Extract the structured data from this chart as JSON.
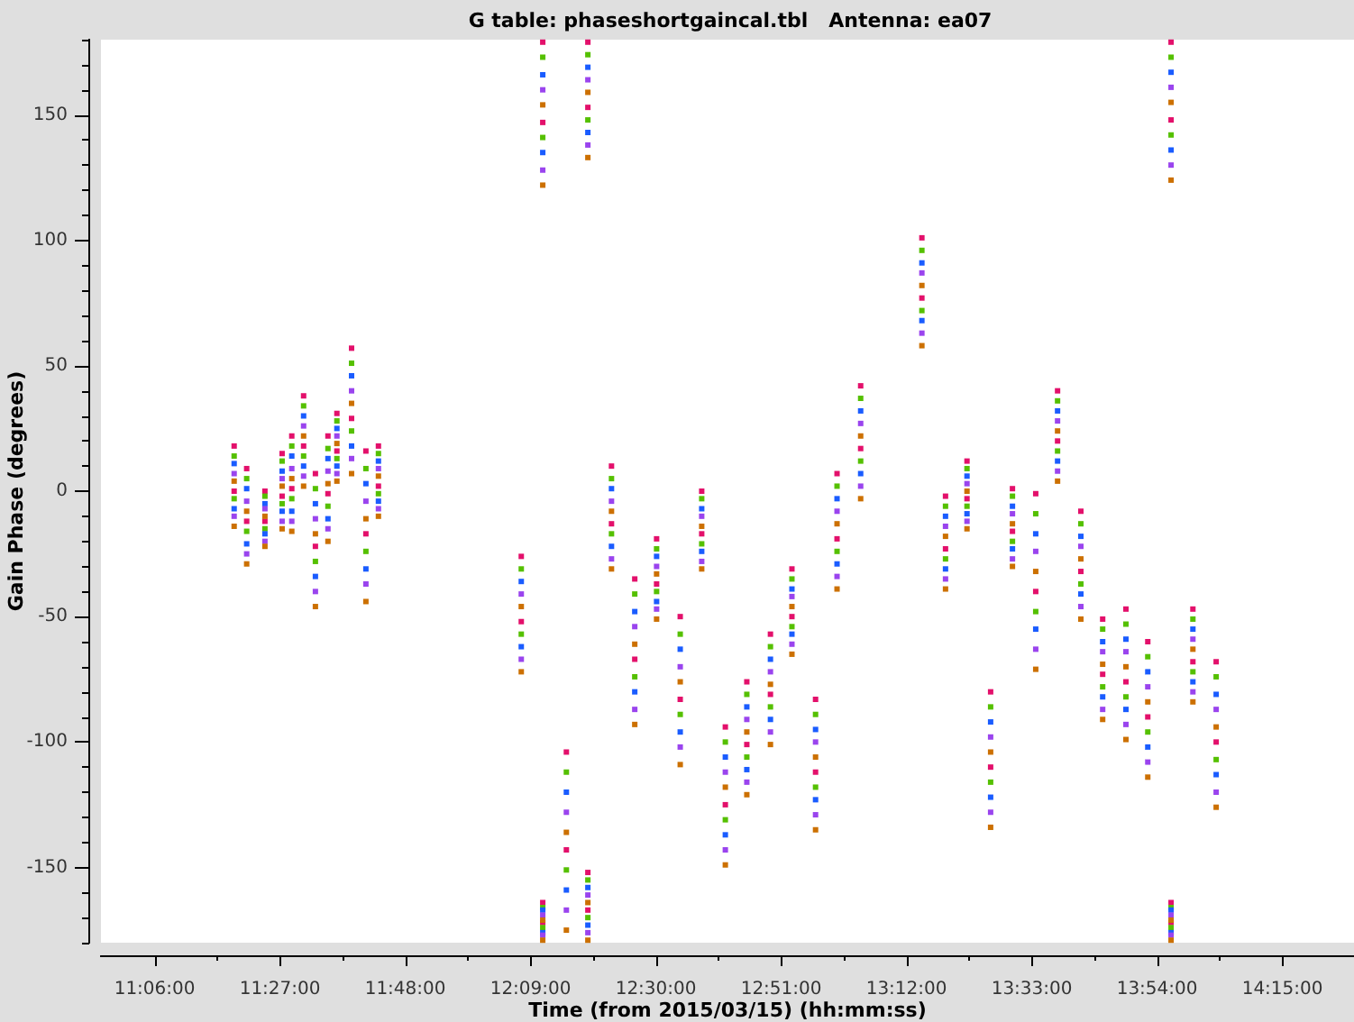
{
  "chart_data": {
    "type": "scatter",
    "title": "G table: phaseshortgaincal.tbl   Antenna: ea07",
    "xlabel": "Time (from 2015/03/15) (hh:mm:ss)",
    "ylabel": "Gain Phase (degrees)",
    "x": [
      11.322,
      11.322,
      11.357,
      11.357,
      11.408,
      11.408,
      11.456,
      11.456,
      11.483,
      11.483,
      11.516,
      11.516,
      11.549,
      11.549,
      11.584,
      11.584,
      11.609,
      11.609,
      11.65,
      11.65,
      11.69,
      11.69,
      11.725,
      11.725,
      12.124,
      12.124,
      12.184,
      12.184,
      12.184,
      12.184,
      12.25,
      12.25,
      12.31,
      12.31,
      12.31,
      12.31,
      12.376,
      12.376,
      12.441,
      12.441,
      12.502,
      12.502,
      12.568,
      12.568,
      12.628,
      12.628,
      12.694,
      12.694,
      12.754,
      12.754,
      12.82,
      12.82,
      12.88,
      12.88,
      12.946,
      12.946,
      13.006,
      13.006,
      13.072,
      13.072,
      13.243,
      13.243,
      13.309,
      13.309,
      13.369,
      13.369,
      13.435,
      13.435,
      13.496,
      13.496,
      13.561,
      13.561,
      13.622,
      13.622,
      13.687,
      13.687,
      13.748,
      13.748,
      13.813,
      13.813,
      13.874,
      13.874,
      13.939,
      13.939,
      13.939,
      13.939,
      14,
      14,
      14.065,
      14.065
    ],
    "series": [
      {
        "color": "#e3106b",
        "values": [
          18,
          0,
          9,
          -12,
          0,
          -12,
          15,
          -2,
          22,
          1,
          38,
          18,
          7,
          -22,
          22,
          -1,
          31,
          16,
          57,
          29,
          16,
          -17,
          18,
          2,
          -26,
          -52,
          179,
          147,
          -164,
          -172,
          -104,
          -143,
          179,
          153,
          -152,
          -167,
          10,
          -13,
          -35,
          -67,
          -19,
          -37,
          -50,
          -83,
          0,
          -17,
          -94,
          -125,
          -76,
          -101,
          -57,
          -81,
          -31,
          -50,
          -83,
          -112,
          7,
          -19,
          42,
          17,
          101,
          77,
          -2,
          -23,
          12,
          -3,
          -80,
          -110,
          1,
          -16,
          -1,
          -40,
          40,
          20,
          -8,
          -32,
          -51,
          -73,
          -47,
          -76,
          -60,
          -90,
          179,
          148,
          -164,
          -172,
          -47,
          -68,
          -68,
          -100
        ]
      },
      {
        "color": "#55c000",
        "values": [
          14,
          -3,
          5,
          -16,
          -2,
          -15,
          12,
          -5,
          18,
          -3,
          34,
          14,
          1,
          -28,
          17,
          -6,
          28,
          13,
          51,
          24,
          9,
          -24,
          15,
          -1,
          -31,
          -57,
          173,
          141,
          -166,
          -174,
          -112,
          -151,
          174,
          148,
          -155,
          -170,
          5,
          -17,
          -41,
          -74,
          -23,
          -40,
          -57,
          -89,
          -3,
          -21,
          -100,
          -131,
          -81,
          -106,
          -62,
          -86,
          -35,
          -54,
          -89,
          -118,
          2,
          -24,
          37,
          12,
          96,
          72,
          -6,
          -27,
          9,
          -6,
          -86,
          -116,
          -2,
          -20,
          -9,
          -48,
          36,
          16,
          -13,
          -37,
          -55,
          -78,
          -53,
          -82,
          -66,
          -96,
          173,
          142,
          -166,
          -174,
          -51,
          -72,
          -74,
          -107
        ]
      },
      {
        "color": "#1a5cff",
        "values": [
          11,
          -7,
          1,
          -21,
          -5,
          -17,
          8,
          -8,
          14,
          -8,
          30,
          10,
          -5,
          -34,
          13,
          -11,
          25,
          10,
          46,
          18,
          3,
          -31,
          12,
          -4,
          -36,
          -62,
          166,
          135,
          -167,
          -176,
          -120,
          -159,
          169,
          143,
          -158,
          -173,
          1,
          -22,
          -48,
          -80,
          -26,
          -44,
          -63,
          -96,
          -7,
          -24,
          -106,
          -137,
          -86,
          -111,
          -67,
          -91,
          -39,
          -57,
          -95,
          -123,
          -3,
          -29,
          32,
          7,
          91,
          68,
          -10,
          -31,
          6,
          -9,
          -92,
          -122,
          -6,
          -23,
          -17,
          -55,
          32,
          12,
          -18,
          -41,
          -60,
          -82,
          -59,
          -87,
          -72,
          -102,
          167,
          136,
          -167,
          -176,
          -55,
          -76,
          -81,
          -113
        ]
      },
      {
        "color": "#9a44ee",
        "values": [
          7,
          -10,
          -4,
          -25,
          -7,
          -20,
          5,
          -12,
          9,
          -12,
          26,
          6,
          -11,
          -40,
          8,
          -15,
          22,
          7,
          40,
          13,
          -4,
          -37,
          9,
          -7,
          -41,
          -67,
          160,
          128,
          -169,
          -177,
          -128,
          -167,
          164,
          138,
          -161,
          -176,
          -4,
          -27,
          -54,
          -87,
          -30,
          -47,
          -70,
          -102,
          -10,
          -28,
          -112,
          -143,
          -91,
          -116,
          -72,
          -96,
          -42,
          -61,
          -100,
          -129,
          -8,
          -34,
          27,
          2,
          87,
          63,
          -14,
          -35,
          3,
          -12,
          -98,
          -128,
          -9,
          -27,
          -24,
          -63,
          28,
          8,
          -22,
          -46,
          -64,
          -87,
          -64,
          -93,
          -78,
          -108,
          161,
          130,
          -169,
          -177,
          -59,
          -80,
          -87,
          -120
        ]
      },
      {
        "color": "#cc7000",
        "values": [
          4,
          -14,
          -8,
          -29,
          -10,
          -22,
          2,
          -15,
          5,
          -16,
          22,
          2,
          -17,
          -46,
          3,
          -20,
          19,
          4,
          35,
          7,
          -11,
          -44,
          6,
          -10,
          -46,
          -72,
          154,
          122,
          -171,
          -179,
          -136,
          -175,
          159,
          133,
          -164,
          -179,
          -8,
          -31,
          -61,
          -93,
          -33,
          -51,
          -76,
          -109,
          -14,
          -31,
          -118,
          -149,
          -96,
          -121,
          -77,
          -101,
          -46,
          -65,
          -106,
          -135,
          -13,
          -39,
          22,
          -3,
          82,
          58,
          -18,
          -39,
          0,
          -15,
          -104,
          -134,
          -13,
          -30,
          -32,
          -71,
          24,
          4,
          -27,
          -51,
          -69,
          -91,
          -70,
          -99,
          -84,
          -114,
          155,
          124,
          -171,
          -179,
          -63,
          -84,
          -94,
          -126
        ]
      }
    ],
    "xlim": [
      10.95,
      14.45
    ],
    "xticks": [
      {
        "value": 11.1,
        "label": "11:06:00"
      },
      {
        "value": 11.275,
        "label": null
      },
      {
        "value": 11.45,
        "label": "11:27:00"
      },
      {
        "value": 11.625,
        "label": null
      },
      {
        "value": 11.8,
        "label": "11:48:00"
      },
      {
        "value": 11.975,
        "label": null
      },
      {
        "value": 12.15,
        "label": "12:09:00"
      },
      {
        "value": 12.325,
        "label": null
      },
      {
        "value": 12.5,
        "label": "12:30:00"
      },
      {
        "value": 12.675,
        "label": null
      },
      {
        "value": 12.85,
        "label": "12:51:00"
      },
      {
        "value": 13.025,
        "label": null
      },
      {
        "value": 13.2,
        "label": "13:12:00"
      },
      {
        "value": 13.375,
        "label": null
      },
      {
        "value": 13.55,
        "label": "13:33:00"
      },
      {
        "value": 13.725,
        "label": null
      },
      {
        "value": 13.9,
        "label": "13:54:00"
      },
      {
        "value": 14.075,
        "label": null
      },
      {
        "value": 14.25,
        "label": "14:15:00"
      }
    ],
    "ylim": [
      -180,
      180
    ],
    "yticks": [
      {
        "value": -180,
        "label": null
      },
      {
        "value": -170,
        "label": null
      },
      {
        "value": -160,
        "label": null
      },
      -150,
      {
        "value": -140,
        "label": null
      },
      {
        "value": -130,
        "label": null
      },
      {
        "value": -120,
        "label": null
      },
      {
        "value": -110,
        "label": null
      },
      -100,
      {
        "value": -90,
        "label": null
      },
      {
        "value": -80,
        "label": null
      },
      {
        "value": -70,
        "label": null
      },
      {
        "value": -60,
        "label": null
      },
      -50,
      {
        "value": -40,
        "label": null
      },
      {
        "value": -30,
        "label": null
      },
      {
        "value": -20,
        "label": null
      },
      {
        "value": -10,
        "label": null
      },
      0,
      {
        "value": 10,
        "label": null
      },
      {
        "value": 20,
        "label": null
      },
      {
        "value": 30,
        "label": null
      },
      {
        "value": 40,
        "label": null
      },
      50,
      {
        "value": 60,
        "label": null
      },
      {
        "value": 70,
        "label": null
      },
      {
        "value": 80,
        "label": null
      },
      {
        "value": 90,
        "label": null
      },
      100,
      {
        "value": 110,
        "label": null
      },
      {
        "value": 120,
        "label": null
      },
      {
        "value": 130,
        "label": null
      },
      {
        "value": 140,
        "label": null
      },
      150,
      {
        "value": 160,
        "label": null
      },
      {
        "value": 170,
        "label": null
      },
      {
        "value": 180,
        "label": null
      }
    ],
    "marker": "square",
    "grid": false
  }
}
